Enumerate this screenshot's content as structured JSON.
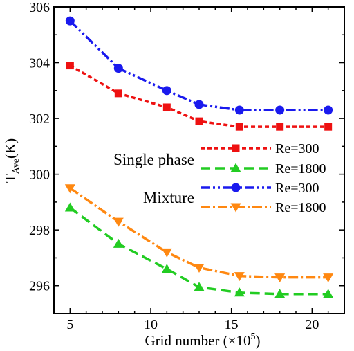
{
  "chart_data": {
    "type": "line",
    "xlabel": {
      "main": "Grid number (×10",
      "sup": "5",
      "end": ")"
    },
    "ylabel": {
      "main": "T",
      "sub": "Ave",
      "end": "(K)"
    },
    "xlim": [
      4,
      22
    ],
    "ylim": [
      295,
      306
    ],
    "xticks": [
      5,
      10,
      15,
      20
    ],
    "yticks": [
      296,
      298,
      300,
      302,
      304,
      306
    ],
    "x": [
      5,
      8,
      11,
      13,
      15.5,
      18,
      21
    ],
    "series": [
      {
        "name": "Re=300",
        "group": "Single phase",
        "color": "#ee1111",
        "dash": "6,4",
        "marker": "square",
        "values": [
          303.9,
          302.9,
          302.4,
          301.9,
          301.7,
          301.7,
          301.7
        ]
      },
      {
        "name": "Re=1800",
        "group": "Single phase",
        "color": "#22cc22",
        "dash": "14,7",
        "marker": "triangle-up",
        "values": [
          298.8,
          297.5,
          296.6,
          295.95,
          295.75,
          295.7,
          295.7
        ]
      },
      {
        "name": "Re=300",
        "group": "Mixture",
        "color": "#1a1aee",
        "dash": "14,4,3,4,3,4",
        "marker": "circle",
        "values": [
          305.5,
          303.8,
          303.0,
          302.5,
          302.3,
          302.3,
          302.3
        ]
      },
      {
        "name": "Re=1800",
        "group": "Mixture",
        "color": "#ff8811",
        "dash": "14,4,3,4",
        "marker": "triangle-down",
        "values": [
          299.5,
          298.3,
          297.2,
          296.65,
          296.35,
          296.3,
          296.3
        ]
      }
    ],
    "legend": {
      "placement": "right-middle",
      "groups": [
        "Single phase",
        "Mixture"
      ],
      "entries": [
        "Re=300",
        "Re=1800",
        "Re=300",
        "Re=1800"
      ]
    },
    "grid": false
  }
}
